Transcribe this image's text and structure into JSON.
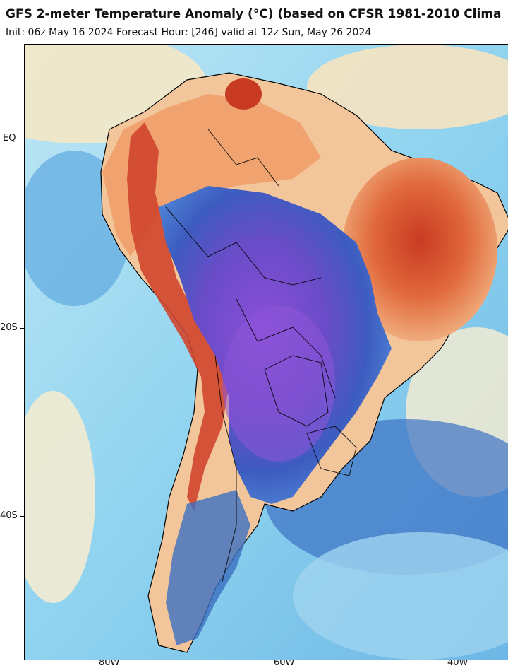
{
  "header": {
    "title": "GFS 2-meter Temperature Anomaly (°C) (based on CFSR 1981-2010 Clima",
    "subtitle": "Init: 06z May 16 2024   Forecast Hour: [246]   valid at 12z Sun, May 26 2024"
  },
  "axes": {
    "latitude_labels": [
      "EQ",
      "20S",
      "40S"
    ],
    "longitude_labels": [
      "80W",
      "60W",
      "40W"
    ]
  },
  "map": {
    "region": "South America",
    "palette": {
      "ocean_near": "#f5efd6",
      "ocean_cool": "#9fdcf0",
      "deep_cool": "#2e63b8",
      "cold_core": "#7a46c9",
      "warm": "#f2b47a",
      "hot": "#d8452a",
      "border": "#000000"
    }
  }
}
